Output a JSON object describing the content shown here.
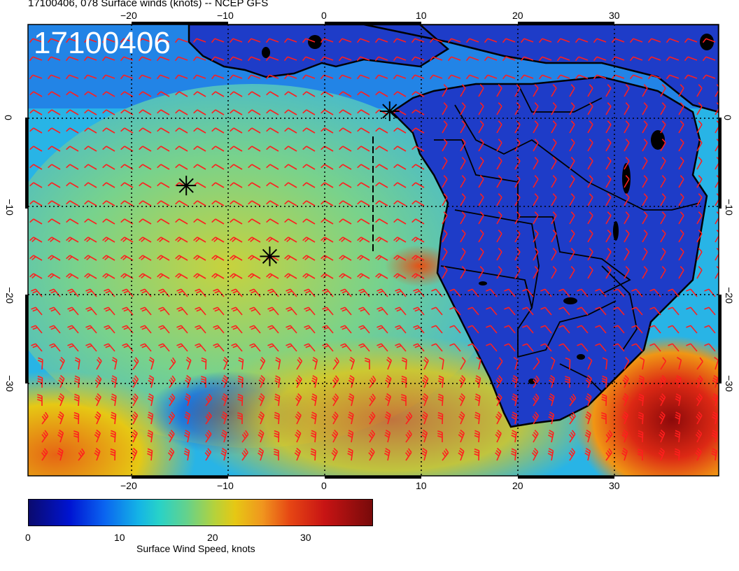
{
  "title": "17100406, 078 Surface winds (knots) -- NCEP GFS",
  "stamp": "17100406",
  "axes": {
    "x_ticks": [
      "−20",
      "−10",
      "0",
      "10",
      "20",
      "30"
    ],
    "x_ticks_top": [
      "−20",
      "−10",
      "0",
      "10",
      "20",
      "30"
    ],
    "y_ticks_left": [
      "0",
      "−10",
      "−20",
      "−30"
    ],
    "y_ticks_right": [
      "0",
      "−10",
      "−20",
      "−30"
    ],
    "lon_range": [
      -31,
      41
    ],
    "lat_range": [
      10,
      -41
    ]
  },
  "colorbar": {
    "label": "Surface Wind Speed, knots",
    "ticks": [
      "0",
      "10",
      "20",
      "30"
    ],
    "range": [
      0,
      37
    ]
  },
  "markers": [
    {
      "name": "star-marker",
      "lon": 6.7,
      "lat": 0.2
    },
    {
      "name": "star-marker",
      "lon": -14.5,
      "lat": -8.2
    },
    {
      "name": "star-marker",
      "lon": -5.8,
      "lat": -16.2
    }
  ],
  "colors": {
    "barb": "#ff1e1e",
    "coast": "#000000",
    "land_low": "#1428c8",
    "ocean_mid": "#3cc8c8",
    "ocean_high": "#c8d23c",
    "storm": "#c81e14"
  }
}
